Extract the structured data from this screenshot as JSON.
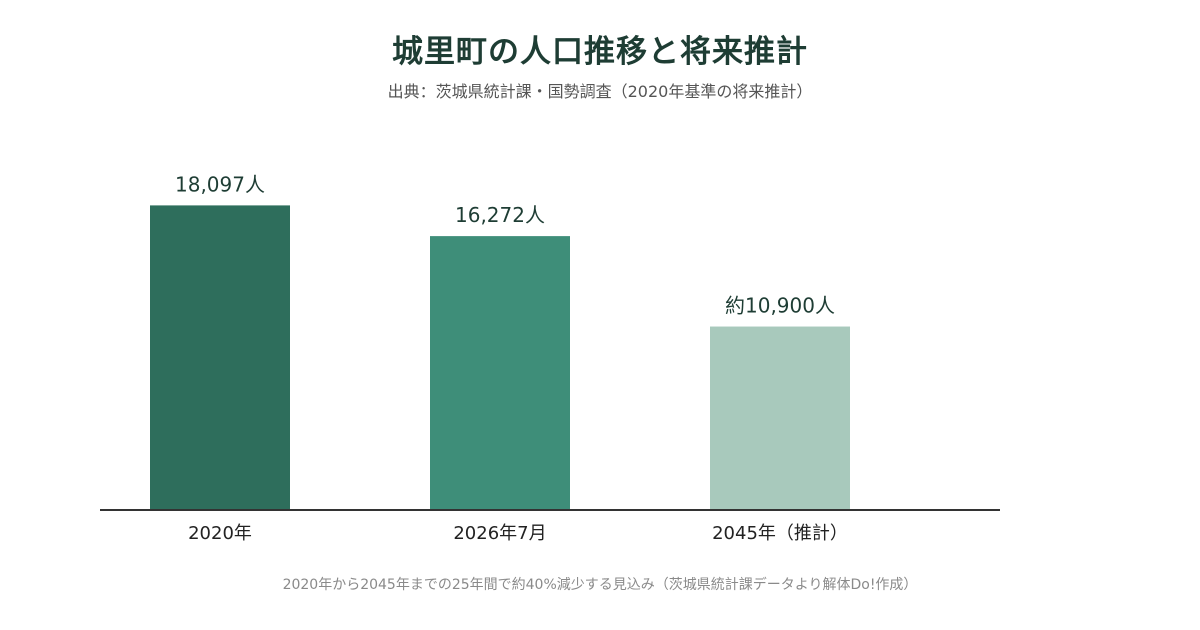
{
  "chart_data": {
    "type": "bar",
    "title": "城里町の人口推移と将来推計",
    "subtitle": "出典：茨城県統計課・国勢調査（2020年基準の将来推計）",
    "footnote": "2020年から2045年までの25年間で約40%減少する見込み（茨城県統計課データより解体Do!作成）",
    "categories": [
      "2020年",
      "2026年7月",
      "2045年（推計）"
    ],
    "values": [
      18097,
      16272,
      10900
    ],
    "data_labels": [
      "18,097人",
      "16,272人",
      "約10,900人"
    ],
    "colors": [
      "#2e6e5c",
      "#3e8e79",
      "#a8c9bc"
    ],
    "xlabel": "",
    "ylabel": "",
    "ylim": [
      0,
      20200
    ],
    "grid": false,
    "legend": "none"
  }
}
